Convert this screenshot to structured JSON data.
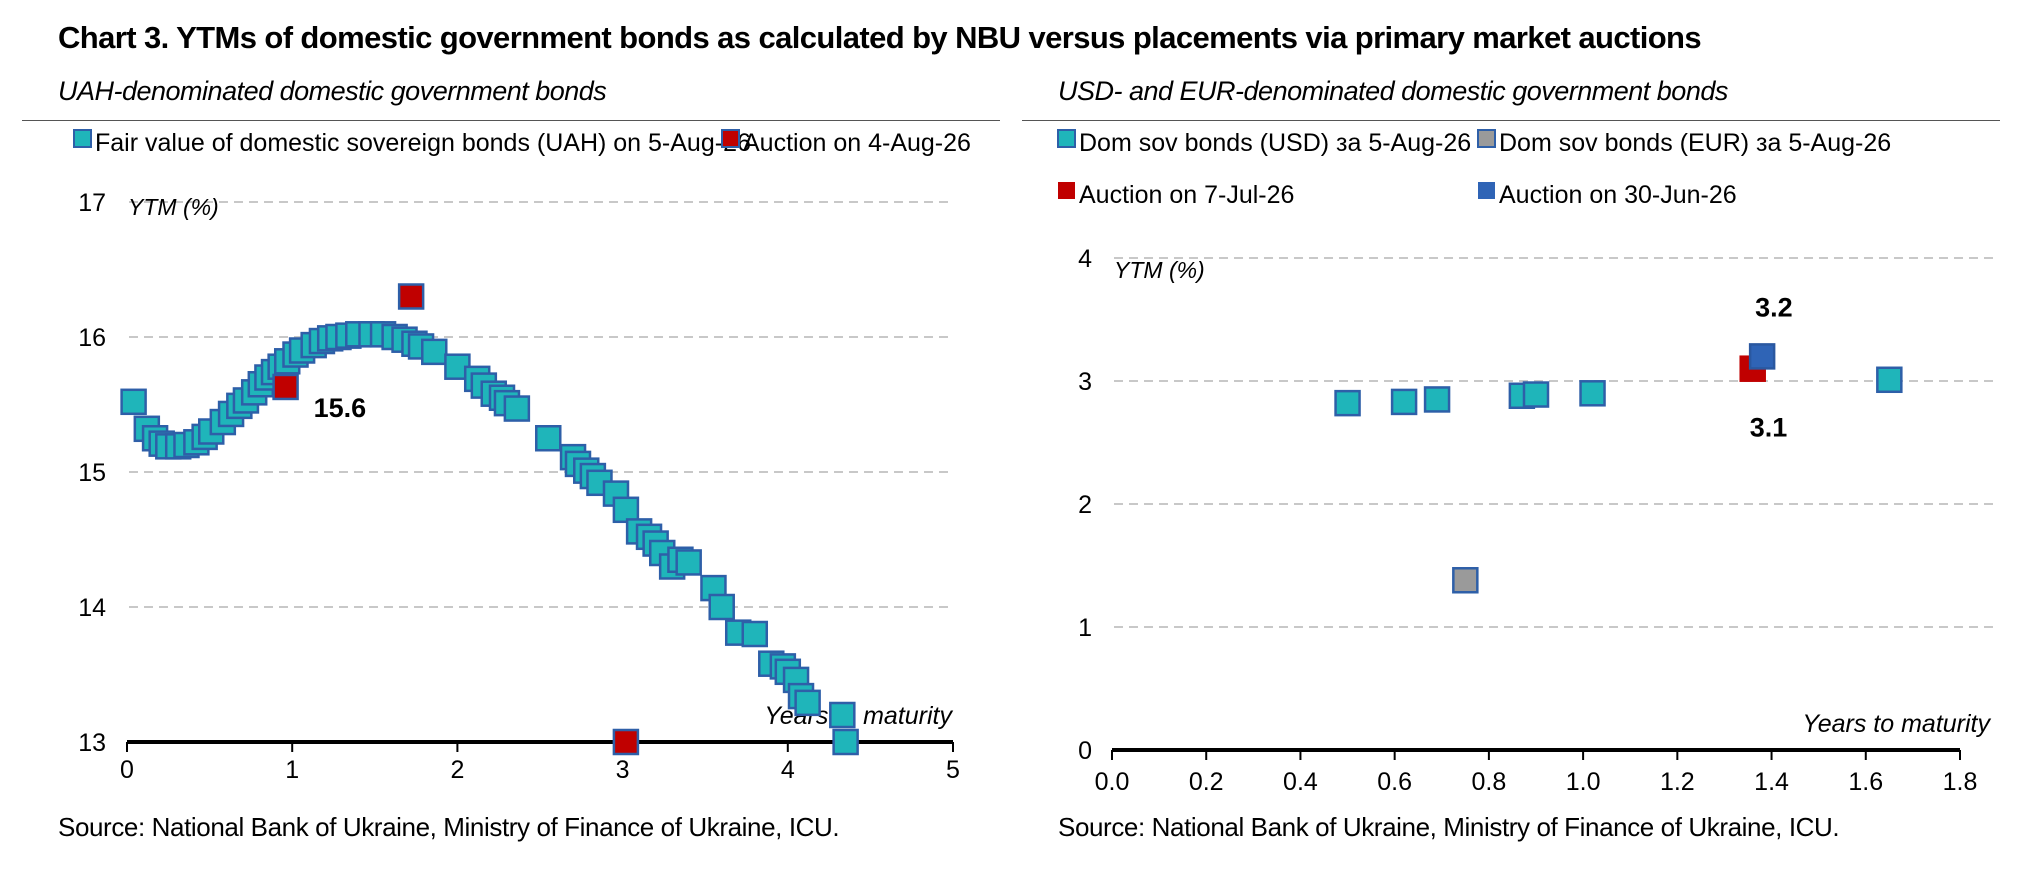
{
  "title": "Chart 3. YTMs of domestic government bonds as calculated by NBU versus placements via primary market auctions",
  "source_text": "Source: National Bank of Ukraine, Ministry of Finance of Ukraine, ICU.",
  "colors": {
    "teal": "#1fb5ba",
    "blue_border": "#2e5fa8",
    "red": "#c00000",
    "grey": "#9a9a9a",
    "auction_blue": "#2f64b6"
  },
  "chart_data": [
    {
      "type": "scatter",
      "title": "UAH-denominated domestic government bonds",
      "ylabel": "YTM (%)",
      "xlabel": "Years to maturity",
      "xlim": [
        0,
        5
      ],
      "ylim": [
        13,
        17
      ],
      "xticks": [
        "0",
        "1",
        "2",
        "3",
        "4",
        "5"
      ],
      "yticks": [
        "13",
        "14",
        "15",
        "16",
        "17"
      ],
      "grid": true,
      "legend_position": "top",
      "series": [
        {
          "name": "Fair value of domestic sovereign bonds (UAH) on 5-Aug-26",
          "color": "#1fb5ba",
          "points": [
            [
              0.04,
              15.52
            ],
            [
              0.12,
              15.32
            ],
            [
              0.17,
              15.25
            ],
            [
              0.21,
              15.21
            ],
            [
              0.25,
              15.19
            ],
            [
              0.31,
              15.19
            ],
            [
              0.36,
              15.2
            ],
            [
              0.42,
              15.22
            ],
            [
              0.47,
              15.26
            ],
            [
              0.51,
              15.3
            ],
            [
              0.58,
              15.37
            ],
            [
              0.63,
              15.43
            ],
            [
              0.68,
              15.49
            ],
            [
              0.72,
              15.53
            ],
            [
              0.77,
              15.59
            ],
            [
              0.81,
              15.65
            ],
            [
              0.85,
              15.7
            ],
            [
              0.89,
              15.74
            ],
            [
              0.93,
              15.78
            ],
            [
              0.97,
              15.82
            ],
            [
              1.02,
              15.87
            ],
            [
              1.06,
              15.9
            ],
            [
              1.13,
              15.94
            ],
            [
              1.18,
              15.97
            ],
            [
              1.23,
              15.99
            ],
            [
              1.28,
              16.0
            ],
            [
              1.34,
              16.01
            ],
            [
              1.4,
              16.02
            ],
            [
              1.48,
              16.02
            ],
            [
              1.55,
              16.02
            ],
            [
              1.62,
              16.0
            ],
            [
              1.68,
              15.98
            ],
            [
              1.74,
              15.95
            ],
            [
              1.78,
              15.93
            ],
            [
              1.86,
              15.89
            ],
            [
              2.0,
              15.78
            ],
            [
              2.12,
              15.69
            ],
            [
              2.16,
              15.64
            ],
            [
              2.22,
              15.58
            ],
            [
              2.27,
              15.55
            ],
            [
              2.3,
              15.51
            ],
            [
              2.36,
              15.47
            ],
            [
              2.55,
              15.25
            ],
            [
              2.7,
              15.11
            ],
            [
              2.73,
              15.06
            ],
            [
              2.78,
              15.01
            ],
            [
              2.82,
              14.97
            ],
            [
              2.86,
              14.92
            ],
            [
              2.96,
              14.84
            ],
            [
              3.02,
              14.72
            ],
            [
              3.1,
              14.56
            ],
            [
              3.16,
              14.52
            ],
            [
              3.2,
              14.47
            ],
            [
              3.24,
              14.4
            ],
            [
              3.3,
              14.3
            ],
            [
              3.35,
              14.35
            ],
            [
              3.4,
              14.33
            ],
            [
              3.55,
              14.14
            ],
            [
              3.6,
              14.0
            ],
            [
              3.7,
              13.81
            ],
            [
              3.8,
              13.8
            ],
            [
              3.9,
              13.58
            ],
            [
              3.97,
              13.56
            ],
            [
              4.0,
              13.52
            ],
            [
              4.05,
              13.46
            ],
            [
              4.08,
              13.34
            ],
            [
              4.12,
              13.29
            ],
            [
              4.33,
              13.2
            ],
            [
              4.35,
              13.0
            ]
          ]
        },
        {
          "name": "Auction on 4-Aug-26",
          "color": "#c00000",
          "points": [
            [
              0.96,
              15.63
            ],
            [
              1.72,
              16.3
            ],
            [
              3.02,
              13.0
            ]
          ]
        }
      ],
      "annotations": [
        {
          "text": "15.6",
          "x": 0.96,
          "y": 15.63
        }
      ]
    },
    {
      "type": "scatter",
      "title": "USD- and EUR-denominated domestic government bonds",
      "ylabel": "YTM (%)",
      "xlabel": "Years to maturity",
      "xlim": [
        0,
        1.8
      ],
      "ylim": [
        0,
        4
      ],
      "xticks": [
        "0.0",
        "0.2",
        "0.4",
        "0.6",
        "0.8",
        "1.0",
        "1.2",
        "1.4",
        "1.6",
        "1.8"
      ],
      "yticks": [
        "0",
        "1",
        "2",
        "3",
        "4"
      ],
      "grid": true,
      "legend_position": "top",
      "series": [
        {
          "name": "Dom sov bonds (USD) за 5-Aug-26",
          "color": "#1fb5ba",
          "points": [
            [
              0.5,
              2.82
            ],
            [
              0.62,
              2.83
            ],
            [
              0.69,
              2.85
            ],
            [
              0.87,
              2.88
            ],
            [
              0.9,
              2.89
            ],
            [
              1.02,
              2.9
            ],
            [
              1.65,
              3.01
            ]
          ]
        },
        {
          "name": "Dom sov bonds (EUR) за 5-Aug-26",
          "color": "#9a9a9a",
          "points": [
            [
              0.75,
              1.38
            ]
          ]
        },
        {
          "name": "Auction on 7-Jul-26",
          "color": "#c00000",
          "points": [
            [
              1.36,
              3.1
            ]
          ]
        },
        {
          "name": "Auction on 30-Jun-26",
          "color": "#2f64b6",
          "points": [
            [
              1.38,
              3.2
            ]
          ]
        }
      ],
      "annotations": [
        {
          "text": "3.2",
          "x": 1.38,
          "y": 3.2
        },
        {
          "text": "3.1",
          "x": 1.36,
          "y": 3.1
        }
      ]
    }
  ]
}
